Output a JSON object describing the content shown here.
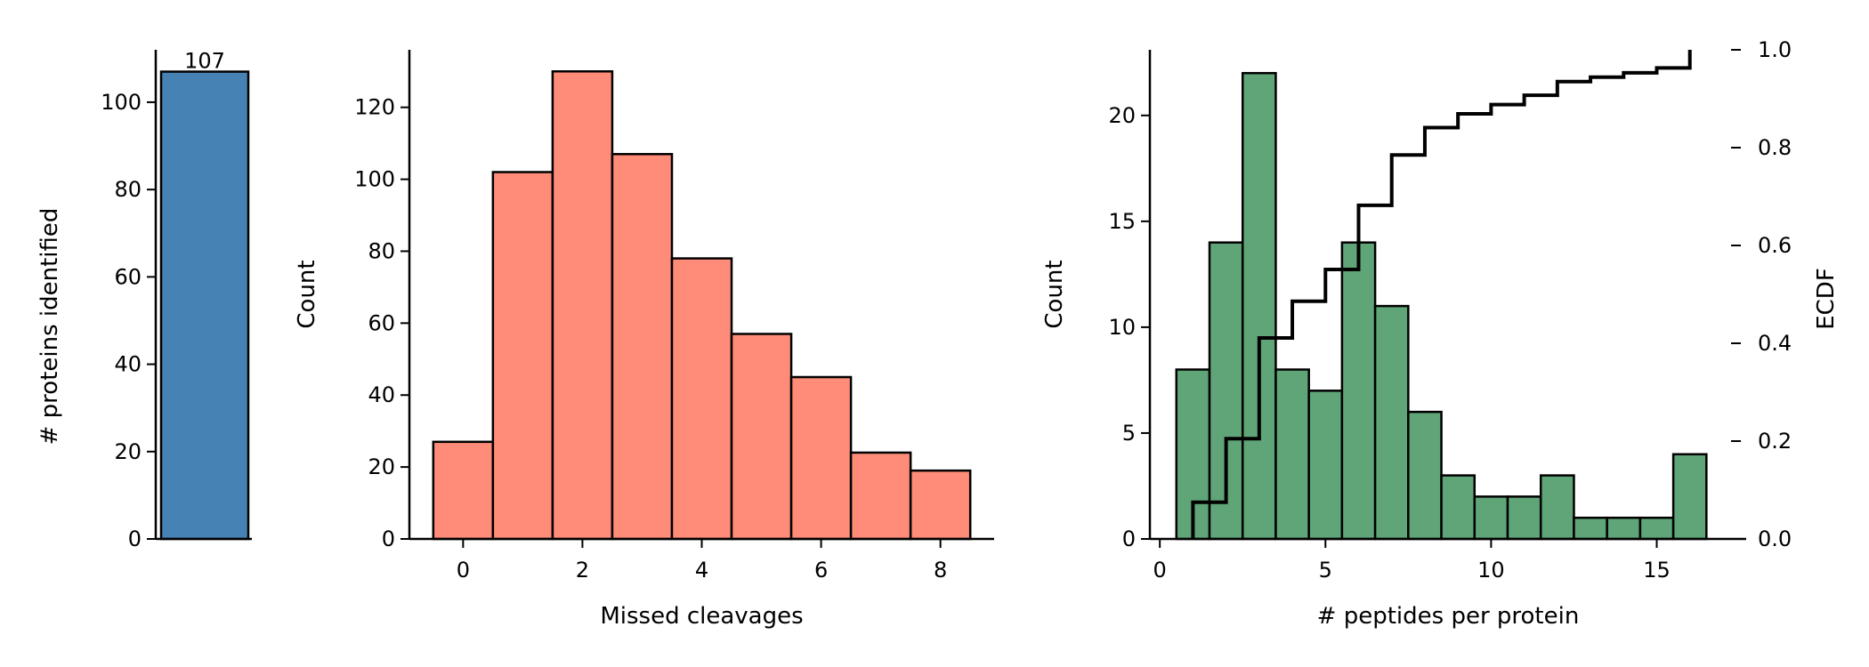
{
  "chart_data": [
    {
      "type": "bar",
      "categories": [
        ""
      ],
      "values": [
        107
      ],
      "data_labels": [
        "107"
      ],
      "ylabel": "# proteins identified",
      "xlabel": "",
      "ylim": [
        0,
        112
      ],
      "yticks": [
        0,
        20,
        40,
        60,
        80,
        100
      ],
      "color": "#4682b4"
    },
    {
      "type": "bar",
      "x": [
        0,
        1,
        2,
        3,
        4,
        5,
        6,
        7,
        8
      ],
      "values": [
        27,
        102,
        130,
        107,
        78,
        57,
        45,
        24,
        19
      ],
      "xlabel": "Missed cleavages",
      "ylabel": "Count",
      "xlim": [
        -0.9,
        8.9
      ],
      "ylim": [
        0,
        136
      ],
      "xticks": [
        0,
        2,
        4,
        6,
        8
      ],
      "yticks": [
        0,
        20,
        40,
        60,
        80,
        100,
        120
      ],
      "color": "#ff8c78"
    },
    {
      "type": "bar",
      "x": [
        1,
        2,
        3,
        4,
        5,
        6,
        7,
        8,
        9,
        10,
        11,
        12,
        13,
        14,
        15,
        16
      ],
      "values": [
        8,
        14,
        22,
        8,
        7,
        14,
        11,
        6,
        3,
        2,
        2,
        3,
        1,
        1,
        1,
        4
      ],
      "xlabel": "# peptides per protein",
      "ylabel": "Count",
      "xlim": [
        -0.3,
        17.7
      ],
      "ylim": [
        0,
        23.1
      ],
      "xticks": [
        0,
        5,
        10,
        15
      ],
      "yticks": [
        0,
        5,
        10,
        15,
        20
      ],
      "color": "#5fa577",
      "ecdf": {
        "ylabel": "ECDF",
        "ylim": [
          0,
          1.0
        ],
        "yticks": [
          "0.0",
          "0.2",
          "0.4",
          "0.6",
          "0.8",
          "1.0"
        ],
        "x": [
          1,
          2,
          3,
          4,
          5,
          6,
          7,
          8,
          9,
          10,
          11,
          12,
          13,
          14,
          15,
          16
        ],
        "y": [
          0.075,
          0.205,
          0.411,
          0.486,
          0.551,
          0.682,
          0.785,
          0.841,
          0.869,
          0.888,
          0.907,
          0.935,
          0.944,
          0.953,
          0.963,
          1.0
        ],
        "color": "#000000"
      }
    }
  ]
}
